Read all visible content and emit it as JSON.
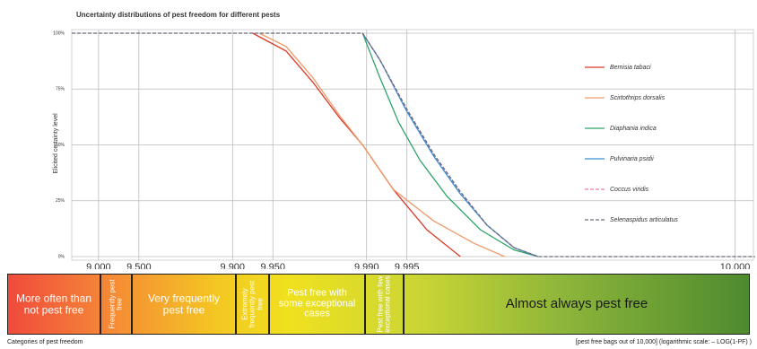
{
  "chart_data": {
    "type": "line",
    "title": "Uncertainty distributions of pest freedom for different pests",
    "ylabel": "Elicited certainty level",
    "xlabel": "[pest free bags out of 10,000] (logarithmic scale: – LOG(1-PF) )",
    "log_scale_x": true,
    "grid": true,
    "legend": "right",
    "xlim": [
      0.8,
      5.9
    ],
    "ylim": [
      0,
      100
    ],
    "xticks": [
      {
        "value": 1,
        "label": "9,000"
      },
      {
        "value": 1.301,
        "label": "9,500"
      },
      {
        "value": 2,
        "label": "9,900"
      },
      {
        "value": 2.301,
        "label": "9,950"
      },
      {
        "value": 3,
        "label": "9,990"
      },
      {
        "value": 3.301,
        "label": "9,995"
      },
      {
        "value": 5.75,
        "label": "10,000"
      }
    ],
    "yticks": [
      {
        "value": 0,
        "label": "0%"
      },
      {
        "value": 25,
        "label": "25%"
      },
      {
        "value": 50,
        "label": "50%"
      },
      {
        "value": 75,
        "label": "75%"
      },
      {
        "value": 100,
        "label": "100%"
      }
    ],
    "series": [
      {
        "name": "Bemisia tabaci",
        "color": "#d83a28",
        "dashed": false,
        "x": [
          2.15,
          2.4,
          2.6,
          2.8,
          2.97,
          3.2,
          3.45,
          3.7
        ],
        "values": [
          100,
          92,
          78,
          62,
          50,
          30,
          12,
          0
        ]
      },
      {
        "name": "Scirtothrips dorsalis",
        "color": "#f19a6a",
        "dashed": false,
        "x": [
          2.2,
          2.4,
          2.6,
          2.8,
          2.97,
          3.2,
          3.5,
          3.8,
          4.03
        ],
        "values": [
          100,
          94,
          80,
          63,
          50,
          30,
          16,
          6,
          0
        ]
      },
      {
        "name": "Diaphania indica",
        "color": "#2ea36a",
        "dashed": false,
        "x": [
          2.97,
          3.1,
          3.24,
          3.4,
          3.6,
          3.85,
          4.1,
          4.28
        ],
        "values": [
          100,
          80,
          60,
          43,
          27,
          12,
          3,
          0
        ]
      },
      {
        "name": "Pulvinaria psidii",
        "color": "#3b8fd6",
        "dashed": false,
        "x": [
          2.97,
          3.1,
          3.3,
          3.5,
          3.7,
          3.9,
          4.1,
          4.28
        ],
        "values": [
          100,
          88,
          65,
          45,
          28,
          14,
          4,
          0
        ]
      },
      {
        "name": "Coccus viridis",
        "color": "#e77a9a",
        "dashed": true,
        "x": [
          2.97,
          3.1,
          3.3,
          3.5,
          3.7,
          3.9,
          4.1,
          4.28
        ],
        "values": [
          100,
          88,
          66,
          46,
          29,
          14,
          4,
          0
        ]
      },
      {
        "name": "Selenaspidus articulatus",
        "color": "#6a6a7a",
        "dashed": true,
        "x": [
          0.8,
          2.97,
          3.1,
          3.3,
          3.5,
          3.7,
          3.9,
          4.1,
          4.28,
          5.9
        ],
        "values": [
          100,
          100,
          88,
          66,
          46,
          29,
          14,
          4,
          0,
          0
        ]
      }
    ]
  },
  "categories_band": {
    "caption": "Categories of pest freedom",
    "items": [
      "More often than not pest free",
      "Frequently pest free",
      "Very frequently pest free",
      "Extremely frequently pest free",
      "Pest free with some exceptional cases",
      "Pest free with few exceptional cases",
      "Almost always pest free"
    ]
  }
}
